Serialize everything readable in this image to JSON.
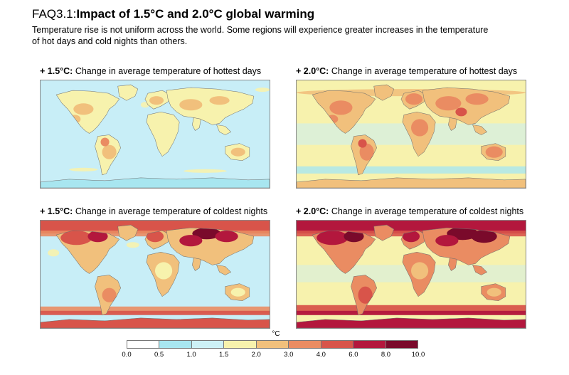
{
  "header": {
    "faq_label": "FAQ3.1:",
    "title": "Impact of 1.5°C and 2.0°C global warming",
    "subtitle": "Temperature rise is not uniform across the world. Some regions will experience greater increases in the temperature of hot days and cold nights than others."
  },
  "panels": [
    {
      "level": "+ 1.5°C:",
      "label": "Change in average temperature of hottest days"
    },
    {
      "level": "+ 2.0°C:",
      "label": "Change in average temperature of hottest days"
    },
    {
      "level": "+ 1.5°C:",
      "label": "Change in average temperature of coldest nights"
    },
    {
      "level": "+ 2.0°C:",
      "label": "Change in average temperature of coldest nights"
    }
  ],
  "legend": {
    "unit": "°C",
    "ticks": [
      "0.0",
      "0.5",
      "1.0",
      "1.5",
      "2.0",
      "3.0",
      "4.0",
      "6.0",
      "8.0",
      "10.0"
    ],
    "colors": [
      "#ffffff",
      "#a8e6f0",
      "#cdf1f6",
      "#f7f2ad",
      "#f1c07c",
      "#ea8c62",
      "#d8544a",
      "#b3173d",
      "#7a0a2b"
    ]
  },
  "map_colors": {
    "ocean_cool": "#c8eef7",
    "cool": "#a8e6f0",
    "light": "#f7f2ad",
    "orange": "#f1c07c",
    "coral": "#ea8c62",
    "red": "#d8544a",
    "crimson": "#b3173d",
    "dark": "#7a0a2b",
    "coast": "#6d6d6d"
  }
}
